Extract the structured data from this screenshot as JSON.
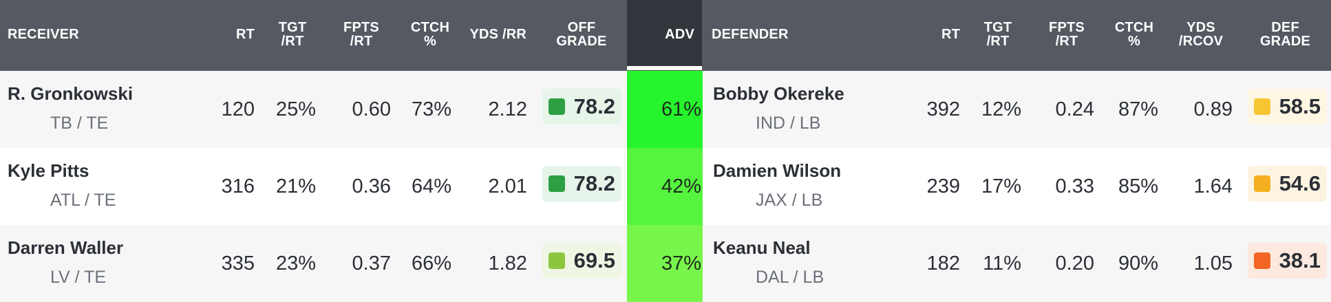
{
  "headers": {
    "receiver": "RECEIVER",
    "rt": "RT",
    "tgt_rt_1": "TGT",
    "tgt_rt_2": "/RT",
    "fpts_rt_1": "FPTS",
    "fpts_rt_2": "/RT",
    "ctch_1": "CTCH",
    "ctch_2": "%",
    "yds_rr": "YDS /RR",
    "off_grade_1": "OFF",
    "off_grade_2": "GRADE",
    "adv": "ADV",
    "defender": "DEFENDER",
    "d_rt": "RT",
    "d_tgt_rt_1": "TGT",
    "d_tgt_rt_2": "/RT",
    "d_fpts_rt_1": "FPTS",
    "d_fpts_rt_2": "/RT",
    "d_ctch_1": "CTCH",
    "d_ctch_2": "%",
    "d_yds_rcov_1": "YDS",
    "d_yds_rcov_2": "/RCOV",
    "def_grade_1": "DEF",
    "def_grade_2": "GRADE"
  },
  "colors": {
    "header_bg": "#555a62",
    "adv_header_bg": "#33363c",
    "grade_green_dark": "#2ea043",
    "grade_green_light": "#8cc63f",
    "grade_yellow": "#f7c531",
    "grade_amber": "#f5b021",
    "grade_orange": "#f26522"
  },
  "rows": [
    {
      "receiver": {
        "name": "R. Gronkowski",
        "team_pos": "TB / TE"
      },
      "rt": "120",
      "tgt_rt": "25%",
      "fpts_rt": "0.60",
      "ctch": "73%",
      "yds_rr": "2.12",
      "off_grade": {
        "value": "78.2",
        "color": "#2ea043",
        "bg": "#e6f4e9"
      },
      "adv": {
        "value": "61%",
        "color": "#26f52e"
      },
      "defender": {
        "name": "Bobby Okereke",
        "team_pos": "IND / LB"
      },
      "d_rt": "392",
      "d_tgt_rt": "12%",
      "d_fpts_rt": "0.24",
      "d_ctch": "87%",
      "d_yds_rcov": "0.89",
      "def_grade": {
        "value": "58.5",
        "color": "#f7c531",
        "bg": "#fdf6e3"
      }
    },
    {
      "receiver": {
        "name": "Kyle Pitts",
        "team_pos": "ATL / TE"
      },
      "rt": "316",
      "tgt_rt": "21%",
      "fpts_rt": "0.36",
      "ctch": "64%",
      "yds_rr": "2.01",
      "off_grade": {
        "value": "78.2",
        "color": "#2ea043",
        "bg": "#e6f4e9"
      },
      "adv": {
        "value": "42%",
        "color": "#55f53f"
      },
      "defender": {
        "name": "Damien Wilson",
        "team_pos": "JAX / LB"
      },
      "d_rt": "239",
      "d_tgt_rt": "17%",
      "d_fpts_rt": "0.33",
      "d_ctch": "85%",
      "d_yds_rcov": "1.64",
      "def_grade": {
        "value": "54.6",
        "color": "#f5b021",
        "bg": "#fdf3e1"
      }
    },
    {
      "receiver": {
        "name": "Darren Waller",
        "team_pos": "LV / TE"
      },
      "rt": "335",
      "tgt_rt": "23%",
      "fpts_rt": "0.37",
      "ctch": "66%",
      "yds_rr": "1.82",
      "off_grade": {
        "value": "69.5",
        "color": "#8cc63f",
        "bg": "#eff6e3"
      },
      "adv": {
        "value": "37%",
        "color": "#78f54b"
      },
      "defender": {
        "name": "Keanu Neal",
        "team_pos": "DAL / LB"
      },
      "d_rt": "182",
      "d_tgt_rt": "11%",
      "d_fpts_rt": "0.20",
      "d_ctch": "90%",
      "d_yds_rcov": "1.05",
      "def_grade": {
        "value": "38.1",
        "color": "#f26522",
        "bg": "#fde9df"
      }
    }
  ]
}
